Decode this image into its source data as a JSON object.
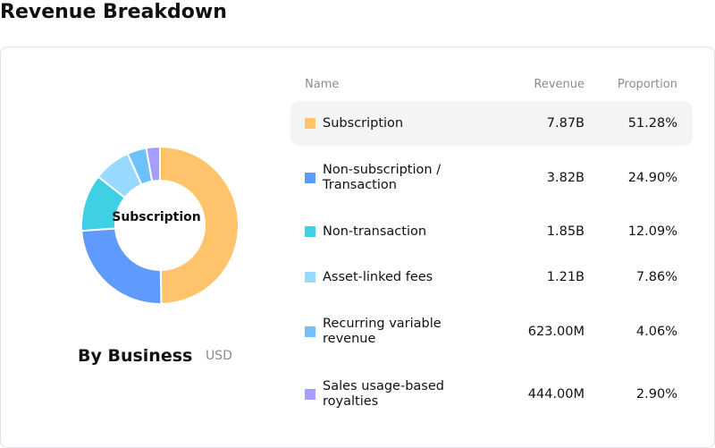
{
  "title": "Revenue Breakdown",
  "chart": {
    "center_label": "Subscription",
    "caption": "By Business",
    "unit": "USD"
  },
  "table": {
    "headers": {
      "name": "Name",
      "revenue": "Revenue",
      "proportion": "Proportion"
    },
    "rows": [
      {
        "name": "Subscription",
        "revenue": "7.87B",
        "proportion": "51.28%",
        "value": 51.28,
        "color": "#FFC46B"
      },
      {
        "name": "Non-subscription / Transaction",
        "revenue": "3.82B",
        "proportion": "24.90%",
        "value": 24.9,
        "color": "#5F9BFF"
      },
      {
        "name": "Non-transaction",
        "revenue": "1.85B",
        "proportion": "12.09%",
        "value": 12.09,
        "color": "#3FD0E6"
      },
      {
        "name": "Asset-linked fees",
        "revenue": "1.21B",
        "proportion": "7.86%",
        "value": 7.86,
        "color": "#97D9FF"
      },
      {
        "name": "Recurring variable revenue",
        "revenue": "623.00M",
        "proportion": "4.06%",
        "value": 4.06,
        "color": "#6EC1FF"
      },
      {
        "name": "Sales usage-based royalties",
        "revenue": "444.00M",
        "proportion": "2.90%",
        "value": 2.9,
        "color": "#A59DFF"
      }
    ]
  }
}
